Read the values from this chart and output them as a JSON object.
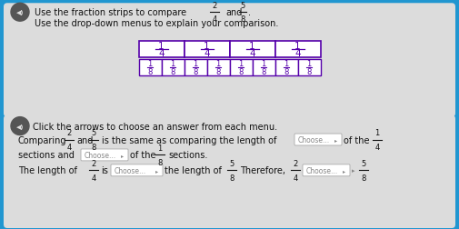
{
  "bg_color": "#2196d0",
  "panel1_color": "#dcdcdc",
  "panel2_color": "#dcdcdc",
  "title_text1": "Use the fraction strips to compare",
  "title_text2": "and",
  "subtitle": "Use the drop-down menus to explain your comparison.",
  "strip_border_color": "#5500aa",
  "strip_fill_color": "#ffffff",
  "strip_text_color": "#5500aa",
  "bottom_title": "Click the arrows to choose an answer from each menu.",
  "choose_label": "Choose...",
  "text_color": "#111111",
  "choose_border": "#aaaaaa",
  "choose_bg": "#ffffff",
  "choose_text_color": "#888888",
  "spk_circle_color": "#888888",
  "spk_text_color": "#cccccc"
}
